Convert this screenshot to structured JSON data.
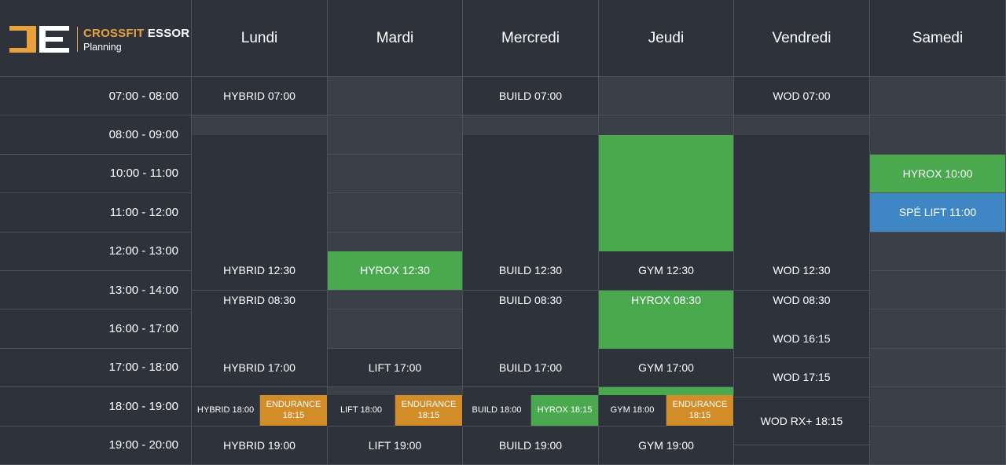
{
  "logo": {
    "brand_accent": "CROSSFIT",
    "brand_main": "ESSOR",
    "subtitle": "Planning",
    "accent_color": "#e9a23b",
    "icon": "essor-logo-mark"
  },
  "days": [
    "Lundi",
    "Mardi",
    "Mercredi",
    "Jeudi",
    "Vendredi",
    "Samedi"
  ],
  "time_slots": [
    "07:00 - 08:00",
    "08:00 - 09:00",
    "10:00 - 11:00",
    "11:00 - 12:00",
    "12:00 - 13:00",
    "13:00 - 14:00",
    "16:00 - 17:00",
    "17:00 - 18:00",
    "18:00 - 19:00",
    "19:00 - 20:00"
  ],
  "colors": {
    "dark": "#2e333b",
    "light": "#3a3f48",
    "green": "#4aa84f",
    "orange": "#d38d28",
    "blue": "#3f86c5"
  },
  "events": [
    {
      "day": 0,
      "start": "07:00",
      "end": "08:00",
      "label": "HYBRID 07:00",
      "color": "dark"
    },
    {
      "day": 0,
      "start": "08:30",
      "end": "09:30",
      "label": "HYBRID 08:30",
      "color": "dark"
    },
    {
      "day": 0,
      "start": "12:30",
      "end": "13:30",
      "label": "HYBRID 12:30",
      "color": "dark"
    },
    {
      "day": 0,
      "start": "17:00",
      "end": "18:00",
      "label": "HYBRID 17:00",
      "color": "dark"
    },
    {
      "day": 0,
      "start": "18:00",
      "end": "19:00",
      "label": "HYBRID 18:00",
      "color": "dark",
      "half": "left"
    },
    {
      "day": 0,
      "start": "18:15",
      "end": "19:00",
      "label": "ENDURANCE 18:15",
      "color": "orange",
      "half": "right"
    },
    {
      "day": 0,
      "start": "19:00",
      "end": "20:00",
      "label": "HYBRID 19:00",
      "color": "dark"
    },
    {
      "day": 1,
      "start": "12:30",
      "end": "13:30",
      "label": "HYROX 12:30",
      "color": "green"
    },
    {
      "day": 1,
      "start": "17:00",
      "end": "18:00",
      "label": "LIFT 17:00",
      "color": "dark"
    },
    {
      "day": 1,
      "start": "18:00",
      "end": "19:00",
      "label": "LIFT 18:00",
      "color": "dark",
      "half": "left"
    },
    {
      "day": 1,
      "start": "18:15",
      "end": "19:00",
      "label": "ENDURANCE 18:15",
      "color": "orange",
      "half": "right"
    },
    {
      "day": 1,
      "start": "19:00",
      "end": "20:00",
      "label": "LIFT 19:00",
      "color": "dark"
    },
    {
      "day": 2,
      "start": "07:00",
      "end": "08:00",
      "label": "BUILD 07:00",
      "color": "dark"
    },
    {
      "day": 2,
      "start": "08:30",
      "end": "09:30",
      "label": "BUILD 08:30",
      "color": "dark"
    },
    {
      "day": 2,
      "start": "12:30",
      "end": "13:30",
      "label": "BUILD 12:30",
      "color": "dark"
    },
    {
      "day": 2,
      "start": "17:00",
      "end": "18:00",
      "label": "BUILD 17:00",
      "color": "dark"
    },
    {
      "day": 2,
      "start": "18:00",
      "end": "19:00",
      "label": "BUILD 18:00",
      "color": "dark",
      "half": "left"
    },
    {
      "day": 2,
      "start": "18:15",
      "end": "19:00",
      "label": "HYROX 18:15",
      "color": "green",
      "half": "right"
    },
    {
      "day": 2,
      "start": "19:00",
      "end": "20:00",
      "label": "BUILD 19:00",
      "color": "dark"
    },
    {
      "day": 3,
      "start": "08:30",
      "end": "09:30",
      "label": "HYROX 08:30",
      "color": "green"
    },
    {
      "day": 3,
      "start": "12:30",
      "end": "13:30",
      "label": "GYM 12:30",
      "color": "dark"
    },
    {
      "day": 3,
      "start": "17:00",
      "end": "18:00",
      "label": "GYM 17:00",
      "color": "dark"
    },
    {
      "day": 3,
      "start": "18:00",
      "end": "19:00",
      "label": "GYM 18:00",
      "color": "dark",
      "half": "left"
    },
    {
      "day": 3,
      "start": "18:15",
      "end": "19:00",
      "label": "ENDURANCE 18:15",
      "color": "orange",
      "half": "right"
    },
    {
      "day": 3,
      "start": "19:00",
      "end": "20:00",
      "label": "GYM 19:00",
      "color": "dark"
    },
    {
      "day": 4,
      "start": "07:00",
      "end": "08:00",
      "label": "WOD 07:00",
      "color": "dark"
    },
    {
      "day": 4,
      "start": "08:30",
      "end": "09:30",
      "label": "WOD 08:30",
      "color": "dark"
    },
    {
      "day": 4,
      "start": "12:30",
      "end": "13:30",
      "label": "WOD 12:30",
      "color": "dark"
    },
    {
      "day": 4,
      "start": "16:15",
      "end": "17:15",
      "label": "WOD 16:15",
      "color": "dark"
    },
    {
      "day": 4,
      "start": "17:15",
      "end": "18:15",
      "label": "WOD 17:15",
      "color": "dark"
    },
    {
      "day": 4,
      "start": "18:15",
      "end": "19:30",
      "label": "WOD RX+ 18:15",
      "color": "dark"
    },
    {
      "day": 5,
      "start": "10:00",
      "end": "11:00",
      "label": "HYROX 10:00",
      "color": "green"
    },
    {
      "day": 5,
      "start": "11:00",
      "end": "12:00",
      "label": "SPÉ LIFT 11:00",
      "color": "blue"
    }
  ]
}
